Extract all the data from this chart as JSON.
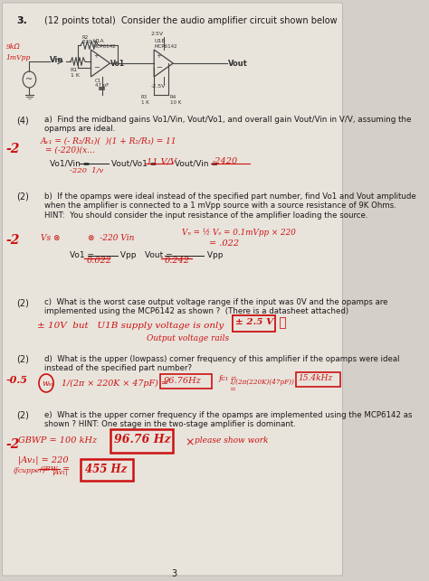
{
  "bg_color": "#d4cfc8",
  "paper_color": "#e8e4dc",
  "title_number": "3.",
  "title_text": "(12 points total)  Consider the audio amplifier circuit shown below",
  "part_a": {
    "points": "(4)",
    "text": "a)  Find the midband gains Vo1/Vin, Vout/Vo1, and overall gain Vout/Vin in V/V, assuming the\nopamps are ideal.",
    "red_score": "-2"
  },
  "part_b": {
    "points": "(2)",
    "text": "b)  If the opamps were ideal instead of the specified part number, find Vo1 and Vout amplitude\nwhen the amplifier is connected to a 1 mVpp source with a source resistance of 9K Ohms.\nHINT:  You should consider the input resistance of the amplifier loading the source.",
    "red_score": "-2"
  },
  "part_c": {
    "points": "(2)",
    "text": "c)  What is the worst case output voltage range if the input was 0V and the opamps are\nimplemented using the MCP6142 as shown ?  (There is a datasheet attached)"
  },
  "part_d": {
    "points": "(2)",
    "text": "d)  What is the upper (lowpass) corner frequency of this amplifier if the opamps were ideal\ninstead of the specified part number?",
    "red_score": "-0.5"
  },
  "part_e": {
    "points": "(2)",
    "text": "e)  What is the upper corner frequency if the opamps are implemented using the MCP6142 as\nshown ? HINT: One stage in the two-stage amplifier is dominant.",
    "red_score": "-2"
  },
  "page_number": "3"
}
